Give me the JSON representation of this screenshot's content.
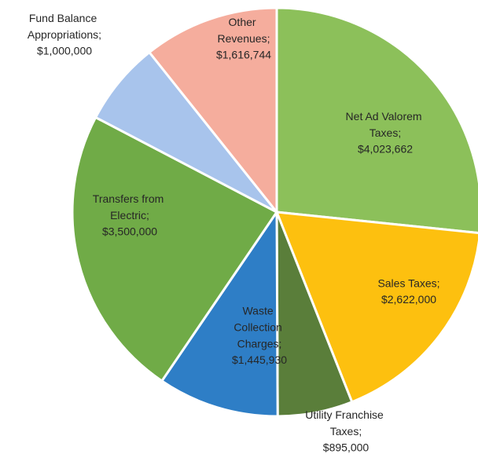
{
  "chart_data": {
    "type": "pie",
    "categories": [
      "Net Ad Valorem Taxes;",
      "Sales Taxes;",
      "Utility Franchise Taxes;",
      "Waste Collection Charges;",
      "Transfers from Electric;",
      "Fund Balance Appropriations;",
      "Other Revenues;"
    ],
    "values": [
      4023662,
      2622000,
      895000,
      1445930,
      3500000,
      1000000,
      1616744
    ],
    "value_labels": [
      "$4,023,662",
      "$2,622,000",
      "$895,000",
      "$1,445,930",
      "$3,500,000",
      "$1,000,000",
      "$1,616,744"
    ],
    "colors": [
      "#8cc05a",
      "#fdc00f",
      "#5a7e3a",
      "#2e7ec6",
      "#70ab47",
      "#a8c4ec",
      "#f5ad9d"
    ]
  }
}
